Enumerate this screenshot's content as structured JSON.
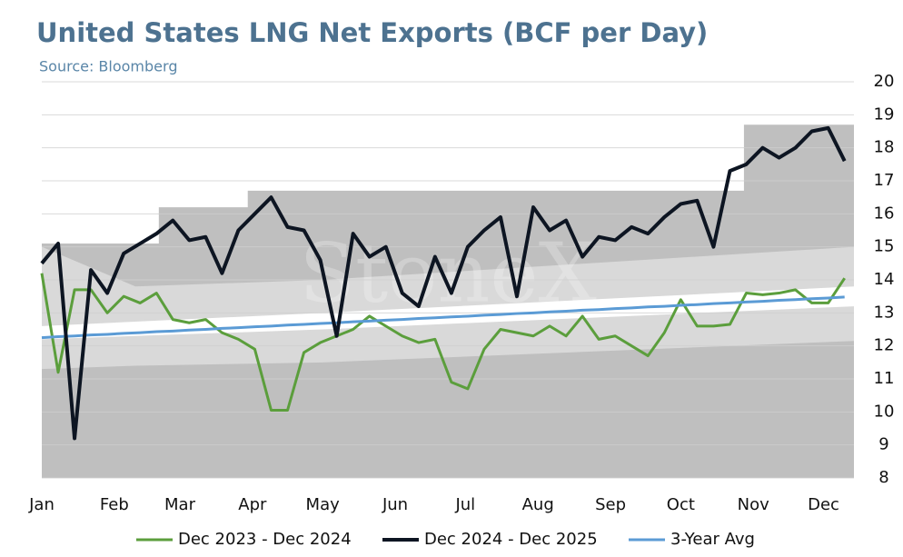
{
  "chart_data": {
    "type": "line",
    "title": "United States LNG Net Exports (BCF per Day)",
    "subtitle": "Source: Bloomberg",
    "watermark": "StoneX",
    "x": [
      0,
      7,
      14,
      21,
      28,
      35,
      42,
      49,
      56,
      63,
      70,
      77,
      84,
      91,
      98,
      105,
      112,
      119,
      126,
      133,
      140,
      147,
      154,
      161,
      168,
      175,
      182,
      189,
      196,
      203,
      210,
      217,
      224,
      231,
      238,
      245,
      252,
      259,
      266,
      273,
      280,
      287,
      294,
      301,
      308,
      315,
      322,
      329,
      336,
      343
    ],
    "xlim": [
      0,
      347
    ],
    "xticks": [
      {
        "value": 0,
        "label": "Jan"
      },
      {
        "value": 31,
        "label": "Feb"
      },
      {
        "value": 59,
        "label": "Mar"
      },
      {
        "value": 90,
        "label": "Apr"
      },
      {
        "value": 120,
        "label": "May"
      },
      {
        "value": 151,
        "label": "Jun"
      },
      {
        "value": 181,
        "label": "Jul"
      },
      {
        "value": 212,
        "label": "Aug"
      },
      {
        "value": 243,
        "label": "Sep"
      },
      {
        "value": 273,
        "label": "Oct"
      },
      {
        "value": 304,
        "label": "Nov"
      },
      {
        "value": 334,
        "label": "Dec"
      }
    ],
    "ylim": [
      8,
      20
    ],
    "yticks": [
      8,
      9,
      10,
      11,
      12,
      13,
      14,
      15,
      16,
      17,
      18,
      19,
      20
    ],
    "grid": true,
    "legend": "bottom",
    "bands": [
      {
        "color": "#bfbfbf",
        "x": [
          0,
          50,
          50,
          88,
          88,
          300,
          300,
          347
        ],
        "upper": [
          15.1,
          15.1,
          16.2,
          16.2,
          16.7,
          16.7,
          18.7,
          18.7
        ],
        "lower": [
          8,
          8,
          8,
          8,
          8,
          8,
          8,
          8
        ]
      },
      {
        "color": "#d9d9d9",
        "x": [
          0,
          40,
          120,
          347
        ],
        "upper": [
          15.0,
          13.8,
          14.0,
          15.0
        ],
        "lower": [
          11.3,
          11.4,
          11.5,
          12.15
        ]
      },
      {
        "color": "#ffffff",
        "x": [
          0,
          120,
          347
        ],
        "upper": [
          12.6,
          13.0,
          13.8
        ],
        "lower": [
          12.2,
          12.5,
          13.2
        ]
      }
    ],
    "series": [
      {
        "name": "Dec 2023 - Dec 2024",
        "color": "#5b9e3c",
        "width": 3,
        "values": [
          14.2,
          11.2,
          13.7,
          13.7,
          13.0,
          13.5,
          13.3,
          13.6,
          12.8,
          12.7,
          12.8,
          12.4,
          12.2,
          11.9,
          10.05,
          10.05,
          11.8,
          12.1,
          12.3,
          12.5,
          12.9,
          12.6,
          12.3,
          12.1,
          12.2,
          10.9,
          10.7,
          11.9,
          12.5,
          12.4,
          12.3,
          12.6,
          12.3,
          12.9,
          12.2,
          12.3,
          12.0,
          11.7,
          12.4,
          13.4,
          12.6,
          12.6,
          12.65,
          13.6,
          13.55,
          13.6,
          13.7,
          13.3,
          13.3,
          14.05
        ]
      },
      {
        "name": "Dec 2024 - Dec 2025",
        "color": "#0d1522",
        "width": 4,
        "values": [
          14.5,
          15.1,
          9.2,
          14.3,
          13.6,
          14.8,
          15.1,
          15.4,
          15.8,
          15.2,
          15.3,
          14.2,
          15.5,
          16.0,
          16.5,
          15.6,
          15.5,
          14.6,
          12.3,
          15.4,
          14.7,
          15.0,
          13.6,
          13.2,
          14.7,
          13.6,
          15.0,
          15.5,
          15.9,
          13.5,
          16.2,
          15.5,
          15.8,
          14.7,
          15.3,
          15.2,
          15.6,
          15.4,
          15.9,
          16.3,
          16.4,
          15.0,
          17.3,
          17.5,
          18.0,
          17.7,
          18.0,
          18.5,
          18.6,
          17.6
        ]
      },
      {
        "name": "3-Year Avg",
        "color": "#5b9bd5",
        "width": 3,
        "values": [
          12.25,
          12.28,
          12.3,
          12.33,
          12.35,
          12.38,
          12.4,
          12.43,
          12.45,
          12.48,
          12.5,
          12.53,
          12.55,
          12.58,
          12.6,
          12.63,
          12.65,
          12.68,
          12.7,
          12.73,
          12.75,
          12.78,
          12.8,
          12.83,
          12.85,
          12.88,
          12.9,
          12.93,
          12.95,
          12.98,
          13.0,
          13.03,
          13.05,
          13.08,
          13.1,
          13.13,
          13.15,
          13.18,
          13.2,
          13.23,
          13.25,
          13.28,
          13.3,
          13.33,
          13.35,
          13.38,
          13.4,
          13.43,
          13.45,
          13.48
        ]
      }
    ]
  }
}
